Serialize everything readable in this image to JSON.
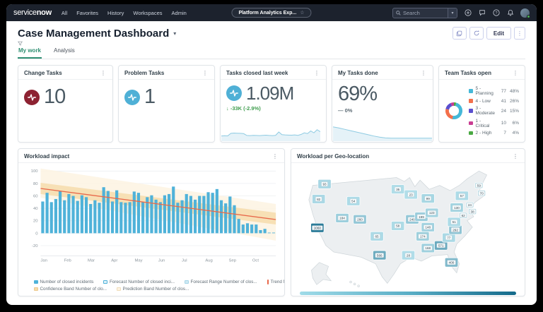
{
  "nav": {
    "logo_service": "service",
    "logo_now": "now",
    "menu": [
      "All",
      "Favorites",
      "History",
      "Workspaces",
      "Admin"
    ],
    "context_pill": "Platform Analytics Exp...",
    "search_placeholder": "Search"
  },
  "header": {
    "title": "Case Management Dashboard",
    "edit_label": "Edit",
    "tabs": [
      {
        "label": "My work",
        "active": true
      },
      {
        "label": "Analysis",
        "active": false
      }
    ]
  },
  "kpis": [
    {
      "title": "Change Tasks",
      "value": "10",
      "icon": "pulse",
      "icon_color": "#8d2232"
    },
    {
      "title": "Problem Tasks",
      "value": "1",
      "icon": "pulse",
      "icon_color": "#4fb0d6"
    },
    {
      "title": "Tasks closed last week",
      "value": "1.09M",
      "icon": "pulse",
      "icon_color": "#4fb0d6",
      "delta": "↓ -33K (-2.9%)",
      "delta_color": "#3f9d4e",
      "sparkline": [
        28,
        30,
        29,
        48,
        50,
        49,
        48,
        46,
        32,
        31,
        33,
        32,
        31,
        33,
        34,
        32,
        31,
        33,
        58,
        38,
        36,
        35,
        34,
        36,
        33,
        40,
        52,
        46,
        66,
        52,
        75,
        60
      ]
    },
    {
      "title": "My Tasks done",
      "value": "69%",
      "icon": "none",
      "delta": "— 0%",
      "delta_color": "#5c6a74",
      "sparkline": [
        96,
        88,
        78,
        68,
        58,
        48,
        38,
        28,
        20,
        14,
        12,
        12,
        12,
        12,
        12,
        12,
        12,
        12
      ]
    }
  ],
  "chart_data": [
    {
      "type": "pie",
      "title": "Team Tasks open",
      "legend_position": "right",
      "segments": [
        {
          "label": "5 - Planning",
          "value": 77,
          "pct": "48%",
          "color": "#45b8d8"
        },
        {
          "label": "4 - Low",
          "value": 41,
          "pct": "26%",
          "color": "#f3704b"
        },
        {
          "label": "3 - Moderate",
          "value": 24,
          "pct": "15%",
          "color": "#5a4fcf"
        },
        {
          "label": "1 - Critical",
          "value": 10,
          "pct": "6%",
          "color": "#c93d92"
        },
        {
          "label": "2 - High",
          "value": 7,
          "pct": "4%",
          "color": "#49a942"
        }
      ],
      "draw_order_from_top_clockwise": [
        "2 - High",
        "5 - Planning",
        "4 - Low",
        "3 - Moderate",
        "1 - Critical"
      ]
    },
    {
      "type": "bar",
      "title": "Workload impact",
      "xlabel": "",
      "ylabel": "",
      "x_labels": [
        "Jan",
        "Feb",
        "Mar",
        "Apr",
        "May",
        "Jun",
        "Jul",
        "Aug",
        "Sep",
        "Oct"
      ],
      "yticks": [
        -20,
        0,
        20,
        40,
        60,
        80,
        100
      ],
      "ylim": [
        -32,
        105
      ],
      "grid": true,
      "bar_color": "#4fb2d9",
      "values": [
        51,
        65,
        50,
        55,
        68,
        53,
        63,
        60,
        52,
        61,
        58,
        47,
        53,
        49,
        74,
        68,
        51,
        69,
        50,
        49,
        50,
        67,
        65,
        50,
        58,
        61,
        54,
        50,
        61,
        63,
        75,
        49,
        53,
        63,
        60,
        54,
        60,
        60,
        66,
        65,
        71,
        53,
        48,
        59,
        45,
        23,
        14,
        16,
        14,
        14,
        5,
        7,
        1,
        1
      ],
      "trend": {
        "start": 72,
        "end": 22,
        "color": "#e8684a"
      },
      "confidence_band": {
        "start": [
          63,
          81
        ],
        "end": [
          14,
          33
        ],
        "color": "#f6dcab"
      },
      "prediction_band": {
        "start": [
          57,
          104
        ],
        "end": [
          -12,
          47
        ],
        "color": "#fdf3e2"
      },
      "legend": [
        {
          "label": "Number of closed incidents",
          "swatch": "square",
          "color": "#4fb2d9",
          "border": "#4fb2d9"
        },
        {
          "label": "Forecast Number of closed inci...",
          "swatch": "square",
          "color": "#dff1f8",
          "border": "#4fb2d9"
        },
        {
          "label": "Forecast Range Number of clos...",
          "swatch": "square",
          "color": "#cfe9f4",
          "border": "#a5d5e8"
        },
        {
          "label": "Trend Number of closed incidents",
          "swatch": "line",
          "color": "#e8684a",
          "border": "#e8684a"
        },
        {
          "label": "Confidence Band Number of clo...",
          "swatch": "square",
          "color": "#f6dcab",
          "border": "#edc98e"
        },
        {
          "label": "Prediction Band Number of clos...",
          "swatch": "square",
          "color": "#fdf3e2",
          "border": "#f0ddba"
        }
      ],
      "legend_rows": [
        4,
        2
      ]
    },
    {
      "type": "choropleth",
      "title": "Workload per Geo-location",
      "region": "United States",
      "scale_ticks": [
        0,
        250,
        500,
        750,
        1000,
        1250
      ],
      "scale_colors": [
        "#b4e0eb",
        "#146a8a"
      ],
      "states": [
        {
          "state": "WA",
          "value": 93
        },
        {
          "state": "OR",
          "value": 82
        },
        {
          "state": "CA",
          "value": 1060
        },
        {
          "state": "WY",
          "value": 54
        },
        {
          "state": "UT",
          "value": 184
        },
        {
          "state": "CO",
          "value": 260
        },
        {
          "state": "TX",
          "value": 566
        },
        {
          "state": "OK",
          "value": 65
        },
        {
          "state": "MO",
          "value": 58
        },
        {
          "state": "MN",
          "value": 35
        },
        {
          "state": "WI",
          "value": 23
        },
        {
          "state": "MI",
          "value": 99
        },
        {
          "state": "IL",
          "value": 249
        },
        {
          "state": "IN",
          "value": 199
        },
        {
          "state": "OH",
          "value": 123
        },
        {
          "state": "KY",
          "value": 148
        },
        {
          "state": "TN",
          "value": 174
        },
        {
          "state": "LA",
          "value": 28
        },
        {
          "state": "AL",
          "value": 168
        },
        {
          "state": "GA",
          "value": 571
        },
        {
          "state": "FL",
          "value": 400
        },
        {
          "state": "SC",
          "value": 77
        },
        {
          "state": "NC",
          "value": 292
        },
        {
          "state": "VA",
          "value": 51
        },
        {
          "state": "PA",
          "value": 130
        },
        {
          "state": "NY",
          "value": 57
        },
        {
          "state": "NH",
          "value": 59
        },
        {
          "state": "MA",
          "value": 70
        },
        {
          "state": "NJ",
          "value": 24
        },
        {
          "state": "MD",
          "value": 62
        },
        {
          "state": "DE",
          "value": 38
        }
      ]
    }
  ]
}
